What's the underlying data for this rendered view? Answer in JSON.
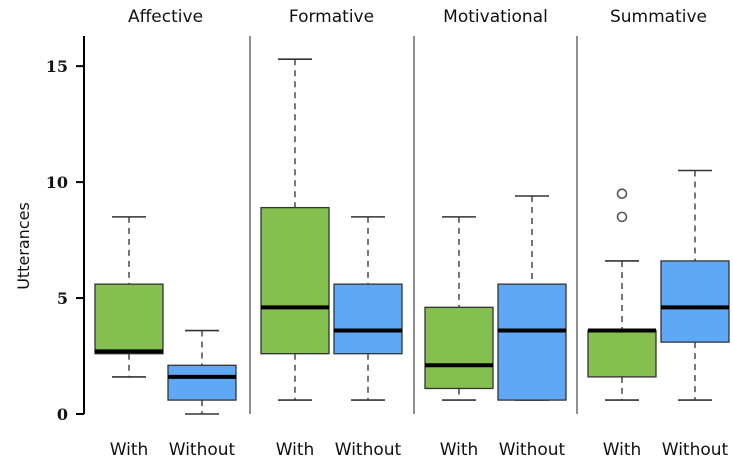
{
  "chart_data": {
    "type": "box",
    "ylabel": "Utterances",
    "ylim": [
      0,
      16.3
    ],
    "yticks": [
      "0",
      "5",
      "10",
      "15"
    ],
    "ytick_values": [
      0,
      5,
      10,
      15
    ],
    "groups": [
      "With",
      "Without"
    ],
    "colors": {
      "With": "#84bf50",
      "Without": "#5fa8f5"
    },
    "grid": false,
    "legend": "none",
    "facets": [
      {
        "name": "Affective",
        "boxes": [
          {
            "label": "With",
            "whisker_low": 1.6,
            "q1": 2.6,
            "median": 2.7,
            "q3": 5.6,
            "whisker_high": 8.5,
            "outliers": []
          },
          {
            "label": "Without",
            "whisker_low": 0,
            "q1": 0.6,
            "median": 1.6,
            "q3": 2.1,
            "whisker_high": 3.6,
            "outliers": []
          }
        ]
      },
      {
        "name": "Formative",
        "boxes": [
          {
            "label": "With",
            "whisker_low": 0.6,
            "q1": 2.6,
            "median": 4.6,
            "q3": 8.9,
            "whisker_high": 15.3,
            "outliers": []
          },
          {
            "label": "Without",
            "whisker_low": 0.6,
            "q1": 2.6,
            "median": 3.6,
            "q3": 5.6,
            "whisker_high": 8.5,
            "outliers": []
          }
        ]
      },
      {
        "name": "Motivational",
        "boxes": [
          {
            "label": "With",
            "whisker_low": 0.6,
            "q1": 1.1,
            "median": 2.1,
            "q3": 4.6,
            "whisker_high": 8.5,
            "outliers": []
          },
          {
            "label": "Without",
            "whisker_low": 0.6,
            "q1": 0.6,
            "median": 3.6,
            "q3": 5.6,
            "whisker_high": 9.4,
            "outliers": []
          }
        ]
      },
      {
        "name": "Summative",
        "boxes": [
          {
            "label": "With",
            "whisker_low": 0.6,
            "q1": 1.6,
            "median": 3.6,
            "q3": 3.6,
            "whisker_high": 6.6,
            "outliers": [
              8.5,
              9.5
            ]
          },
          {
            "label": "Without",
            "whisker_low": 0.6,
            "q1": 3.1,
            "median": 4.6,
            "q3": 6.6,
            "whisker_high": 10.5,
            "outliers": []
          }
        ]
      }
    ]
  }
}
